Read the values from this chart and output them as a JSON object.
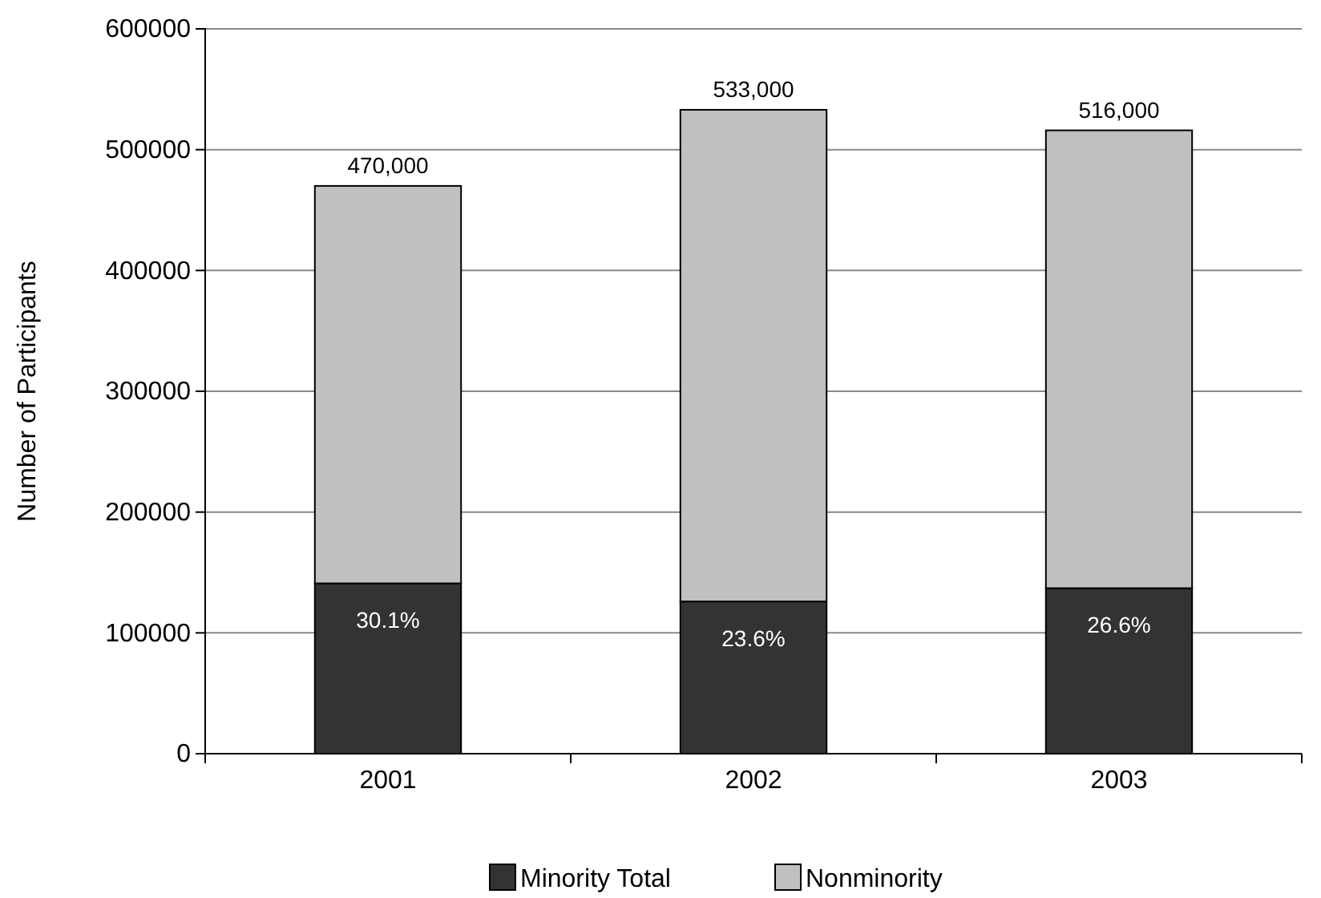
{
  "chart_data": {
    "type": "bar",
    "stacked": true,
    "ylabel": "Number of Participants",
    "categories": [
      "2001",
      "2002",
      "2003"
    ],
    "series": [
      {
        "name": "Minority Total",
        "color": "#333333",
        "values": [
          141000,
          126000,
          137000
        ]
      },
      {
        "name": "Nonminority",
        "color": "#c0c0c0",
        "values": [
          329000,
          407000,
          379000
        ]
      }
    ],
    "annotations": [
      {
        "text": "30.1%",
        "x": "2001",
        "y": 141000
      },
      {
        "text": "23.6%",
        "x": "2002",
        "y": 126000
      },
      {
        "text": "26.6%",
        "x": "2003",
        "y": 137000
      }
    ],
    "totals": [
      "470,000",
      "533,000",
      "516,000"
    ],
    "ylim": [
      0,
      600000
    ],
    "yticks": [
      0,
      100000,
      200000,
      300000,
      400000,
      500000,
      600000
    ],
    "grid": "y",
    "legend": "bottom"
  }
}
